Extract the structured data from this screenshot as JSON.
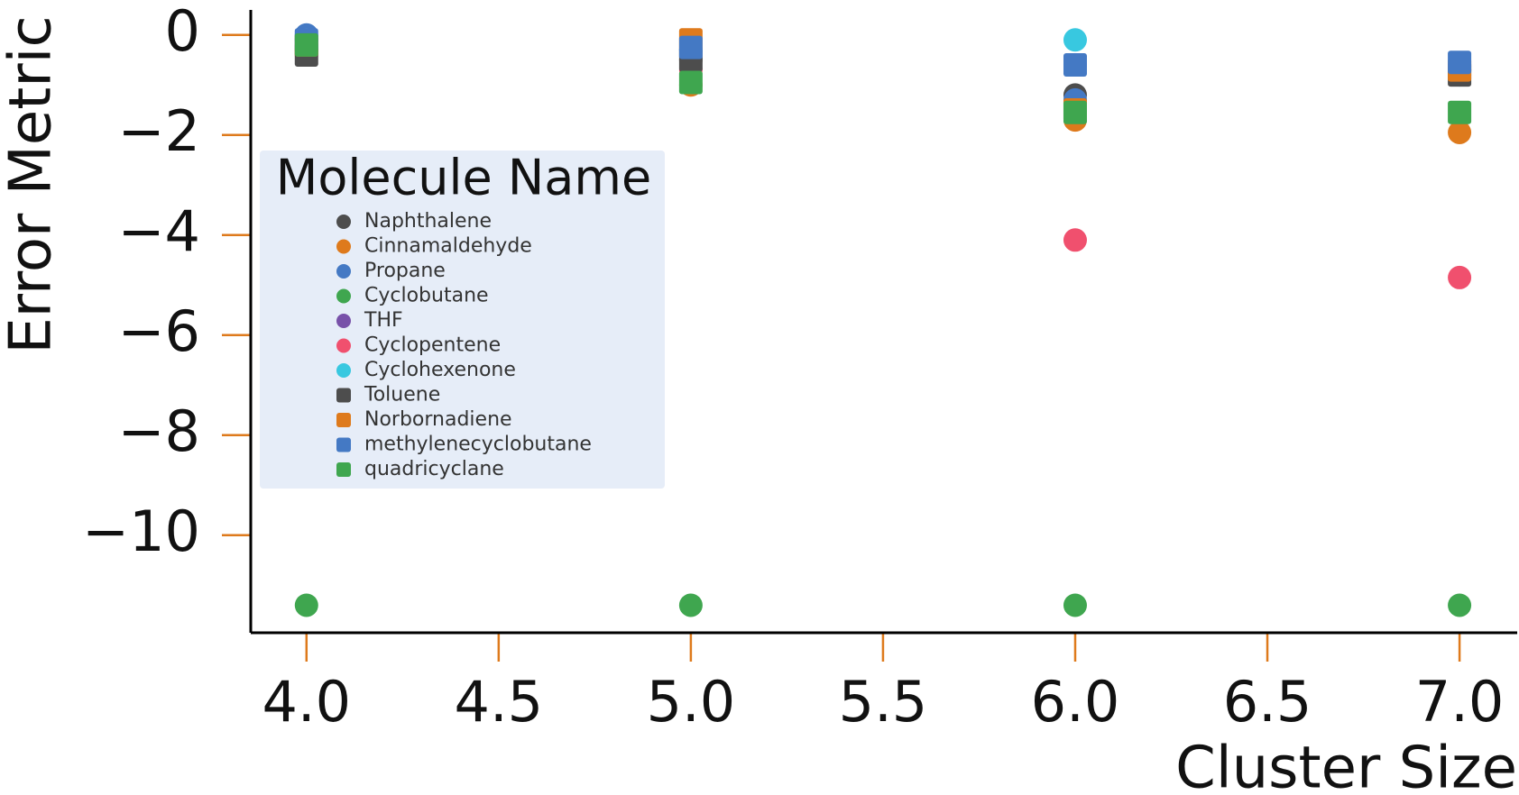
{
  "chart_data": {
    "type": "scatter",
    "x_label": "Cluster Size",
    "y_label": "Error Metric",
    "xlim": [
      3.855,
      7.15
    ],
    "ylim": [
      -11.95,
      0.5
    ],
    "xticks": [
      {
        "value": 4,
        "label": "4.0"
      },
      {
        "value": 4.5,
        "label": "4.5"
      },
      {
        "value": 5,
        "label": "5.0"
      },
      {
        "value": 5.5,
        "label": "5.5"
      },
      {
        "value": 6,
        "label": "6.0"
      },
      {
        "value": 6.5,
        "label": "6.5"
      },
      {
        "value": 7,
        "label": "7.0"
      }
    ],
    "yticks": [
      {
        "value": 0,
        "label": "0"
      },
      {
        "value": -2,
        "label": "−2"
      },
      {
        "value": -4,
        "label": "−4"
      },
      {
        "value": -6,
        "label": "−6"
      },
      {
        "value": -8,
        "label": "−8"
      },
      {
        "value": -10,
        "label": "−10"
      }
    ],
    "tick_color": "#de7a1c",
    "legend_title": "Molecule Name",
    "legend_position": "center-left",
    "x": [
      4,
      5,
      6,
      7
    ],
    "series": [
      {
        "name": "Naphthalene",
        "marker": "circle",
        "color": "#4d4d4d",
        "values": [
          -0.3,
          -0.5,
          -1.2,
          -0.7
        ]
      },
      {
        "name": "Cinnamaldehyde",
        "marker": "circle",
        "color": "#de7a1c",
        "values": [
          -0.4,
          -1.0,
          -1.7,
          -1.95
        ]
      },
      {
        "name": "Propane",
        "marker": "circle",
        "color": "#4479c4",
        "values": [
          0.0,
          -0.3,
          -1.3,
          -0.6
        ]
      },
      {
        "name": "Cyclobutane",
        "marker": "circle",
        "color": "#3fa64f",
        "values": [
          -11.4,
          -11.4,
          -11.4,
          -11.4
        ]
      },
      {
        "name": "THF",
        "marker": "circle",
        "color": "#7851a9",
        "values": [
          -0.1,
          -0.3,
          -0.6,
          -0.6
        ]
      },
      {
        "name": "Cyclopentene",
        "marker": "circle",
        "color": "#f0506e",
        "values": [
          -0.2,
          -0.7,
          -4.1,
          -4.85
        ]
      },
      {
        "name": "Cyclohexenone",
        "marker": "circle",
        "color": "#38c8e0",
        "values": [
          -0.1,
          -0.3,
          -0.1,
          -0.8
        ]
      },
      {
        "name": "Toluene",
        "marker": "square",
        "color": "#4d4d4d",
        "values": [
          -0.4,
          -0.5,
          -1.5,
          -0.8
        ]
      },
      {
        "name": "Norbornadiene",
        "marker": "square",
        "color": "#de7a1c",
        "values": [
          -0.2,
          -0.1,
          -1.5,
          -0.7
        ]
      },
      {
        "name": "methylenecyclobutane",
        "marker": "square",
        "color": "#4479c4",
        "values": [
          -0.1,
          -0.25,
          -0.6,
          -0.55
        ]
      },
      {
        "name": "quadricyclane",
        "marker": "square",
        "color": "#3fa64f",
        "values": [
          -0.2,
          -0.95,
          -1.55,
          -1.55
        ]
      }
    ]
  }
}
